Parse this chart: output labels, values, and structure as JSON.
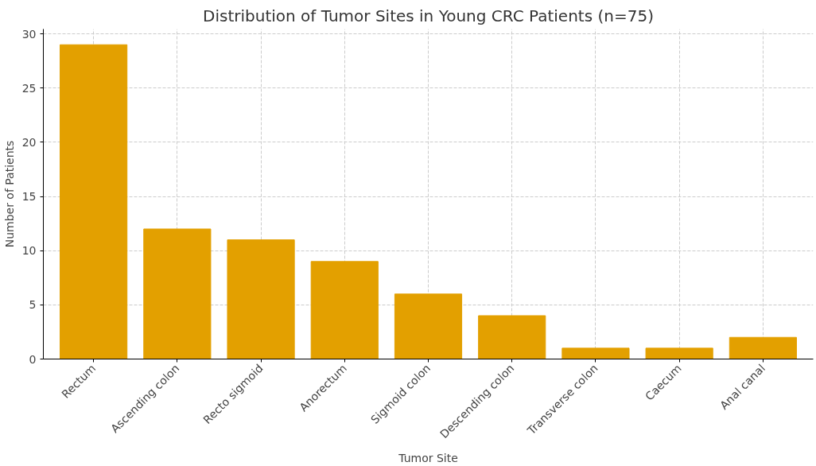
{
  "chart_data": {
    "type": "bar",
    "title": "Distribution of Tumor Sites in Young CRC Patients (n=75)",
    "xlabel": "Tumor Site",
    "ylabel": "Number of Patients",
    "categories": [
      "Rectum",
      "Ascending colon",
      "Recto sigmoid",
      "Anorectum",
      "Sigmoid colon",
      "Descending colon",
      "Transverse colon",
      "Caecum",
      "Anal canal"
    ],
    "values": [
      29,
      12,
      11,
      9,
      6,
      4,
      1,
      1,
      2
    ],
    "color": "#e3a000",
    "ylim": [
      0,
      30.45
    ],
    "yticks": [
      0,
      5,
      10,
      15,
      20,
      25,
      30
    ],
    "grid": true
  }
}
